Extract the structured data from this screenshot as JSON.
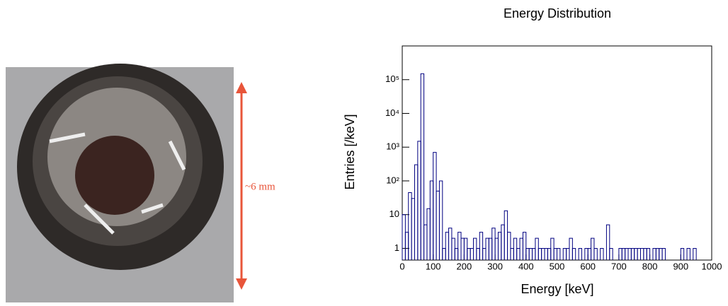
{
  "photo": {
    "annotation": "~6 mm"
  },
  "chart_data": {
    "type": "histogram",
    "title": "Energy Distribution",
    "x_label": "Energy [keV]",
    "y_label": "Entries [/keV]",
    "color": "#000080",
    "log_y": true,
    "bins": [
      0,
      10,
      20,
      30,
      40,
      50,
      60,
      70,
      80,
      90,
      100,
      110,
      120,
      130,
      140,
      150,
      160,
      170,
      180,
      190,
      200,
      210,
      220,
      230,
      240,
      250,
      260,
      270,
      280,
      290,
      300,
      310,
      320,
      330,
      340,
      350,
      360,
      370,
      380,
      390,
      400,
      410,
      420,
      430,
      440,
      450,
      460,
      470,
      480,
      490,
      500,
      510,
      520,
      530,
      540,
      550,
      560,
      570,
      580,
      590,
      600,
      610,
      620,
      630,
      640,
      650,
      660,
      670,
      680,
      690,
      700,
      710,
      720,
      730,
      740,
      750,
      760,
      770,
      780,
      790,
      800,
      810,
      820,
      830,
      840,
      850,
      860,
      870,
      880,
      890,
      900,
      910,
      920,
      930,
      940,
      950,
      960,
      970,
      980,
      990,
      1000
    ],
    "counts": [
      10,
      3,
      45,
      30,
      300,
      1500,
      150000,
      5,
      15,
      100,
      700,
      50,
      100,
      1,
      3,
      4,
      2,
      1,
      3,
      2,
      2,
      1,
      1,
      2,
      1,
      3,
      1,
      2,
      2,
      4,
      2,
      3,
      5,
      13,
      3,
      1,
      2,
      1,
      2,
      3,
      1,
      1,
      1,
      2,
      1,
      1,
      1,
      1,
      2,
      1,
      1,
      0,
      1,
      1,
      2,
      1,
      0,
      1,
      0,
      1,
      1,
      2,
      1,
      0,
      1,
      0,
      5,
      1,
      0,
      0,
      1,
      1,
      1,
      1,
      1,
      1,
      1,
      1,
      1,
      1,
      0,
      1,
      1,
      1,
      1,
      0,
      0,
      0,
      0,
      0,
      1,
      0,
      1,
      0,
      1,
      0,
      0,
      0,
      0,
      0
    ],
    "xlim": [
      0,
      1000
    ],
    "xticks": [
      0,
      100,
      200,
      300,
      400,
      500,
      600,
      700,
      800,
      900,
      1000
    ],
    "ylim": [
      0.45,
      1000000
    ],
    "yticks": [
      1,
      10,
      {
        "value": 100,
        "label": "10²"
      },
      {
        "value": 1000,
        "label": "10³"
      },
      {
        "value": 10000,
        "label": "10⁴"
      },
      {
        "value": 100000,
        "label": "10⁵"
      }
    ]
  }
}
